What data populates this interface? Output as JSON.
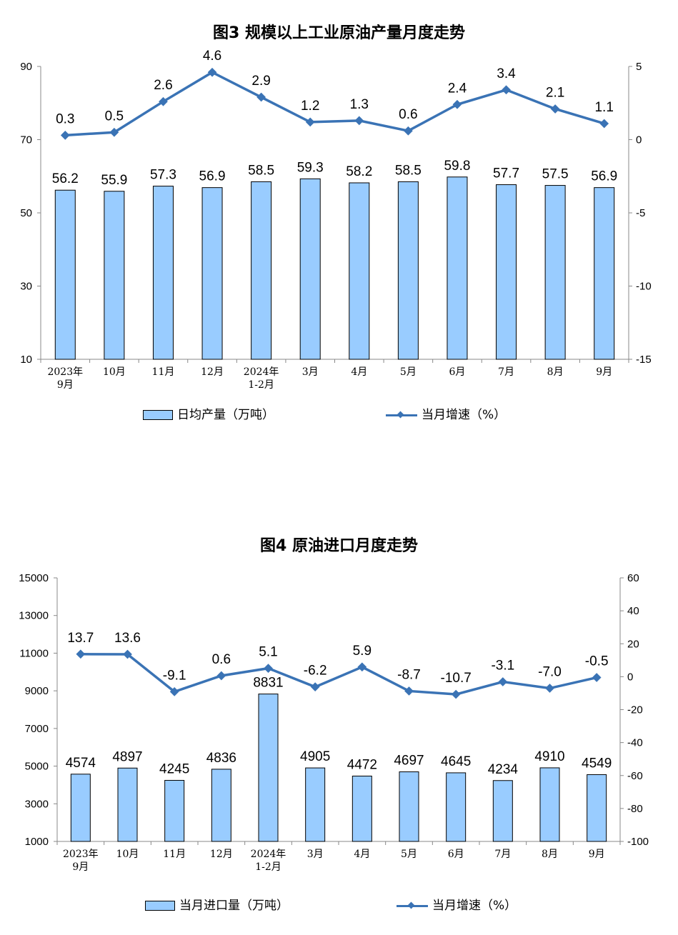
{
  "chart_data": [
    {
      "type": "bar+line",
      "title": "图3 规模以上工业原油产量月度走势",
      "categories": [
        [
          "2023年",
          "9月"
        ],
        [
          "10月"
        ],
        [
          "11月"
        ],
        [
          "12月"
        ],
        [
          "2024年",
          "1-2月"
        ],
        [
          "3月"
        ],
        [
          "4月"
        ],
        [
          "5月"
        ],
        [
          "6月"
        ],
        [
          "7月"
        ],
        [
          "8月"
        ],
        [
          "9月"
        ]
      ],
      "left_axis": {
        "ylim": [
          10,
          90
        ],
        "ticks": [
          10,
          30,
          50,
          70,
          90
        ]
      },
      "right_axis": {
        "ylim": [
          -15,
          5
        ],
        "ticks": [
          -15,
          -10,
          -5,
          0,
          5
        ]
      },
      "series": [
        {
          "name": "日均产量（万吨）",
          "kind": "bar",
          "axis": "left",
          "values": [
            56.2,
            55.9,
            57.3,
            56.9,
            58.5,
            59.3,
            58.2,
            58.5,
            59.8,
            57.7,
            57.5,
            56.9
          ],
          "labels": [
            "56.2",
            "55.9",
            "57.3",
            "56.9",
            "58.5",
            "59.3",
            "58.2",
            "58.5",
            "59.8",
            "57.7",
            "57.5",
            "56.9"
          ]
        },
        {
          "name": "当月增速（%）",
          "kind": "line",
          "axis": "right",
          "values": [
            0.3,
            0.5,
            2.6,
            4.6,
            2.9,
            1.2,
            1.3,
            0.6,
            2.4,
            3.4,
            2.1,
            1.1
          ],
          "labels": [
            "0.3",
            "0.5",
            "2.6",
            "4.6",
            "2.9",
            "1.2",
            "1.3",
            "0.6",
            "2.4",
            "3.4",
            "2.1",
            "1.1"
          ]
        }
      ],
      "legend_position": "bottom",
      "grid": false,
      "colors": {
        "bar": "#99ccff",
        "bar_border": "#000000",
        "line": "#3a73b5"
      }
    },
    {
      "type": "bar+line",
      "title": "图4 原油进口月度走势",
      "categories": [
        [
          "2023年",
          "9月"
        ],
        [
          "10月"
        ],
        [
          "11月"
        ],
        [
          "12月"
        ],
        [
          "2024年",
          "1-2月"
        ],
        [
          "3月"
        ],
        [
          "4月"
        ],
        [
          "5月"
        ],
        [
          "6月"
        ],
        [
          "7月"
        ],
        [
          "8月"
        ],
        [
          "9月"
        ]
      ],
      "left_axis": {
        "ylim": [
          1000,
          15000
        ],
        "ticks": [
          1000,
          3000,
          5000,
          7000,
          9000,
          11000,
          13000,
          15000
        ]
      },
      "right_axis": {
        "ylim": [
          -100,
          60
        ],
        "ticks": [
          -100,
          -80,
          -60,
          -40,
          -20,
          0,
          20,
          40,
          60
        ]
      },
      "series": [
        {
          "name": "当月进口量（万吨）",
          "kind": "bar",
          "axis": "left",
          "values": [
            4574,
            4897,
            4245,
            4836,
            8831,
            4905,
            4472,
            4697,
            4645,
            4234,
            4910,
            4549
          ],
          "labels": [
            "4574",
            "4897",
            "4245",
            "4836",
            "8831",
            "4905",
            "4472",
            "4697",
            "4645",
            "4234",
            "4910",
            "4549"
          ]
        },
        {
          "name": "当月增速（%）",
          "kind": "line",
          "axis": "right",
          "values": [
            13.7,
            13.6,
            -9.1,
            0.6,
            5.1,
            -6.2,
            5.9,
            -8.7,
            -10.7,
            -3.1,
            -7.0,
            -0.5
          ],
          "labels": [
            "13.7",
            "13.6",
            "-9.1",
            "0.6",
            "5.1",
            "-6.2",
            "5.9",
            "-8.7",
            "-10.7",
            "-3.1",
            "-7.0",
            "-0.5"
          ]
        }
      ],
      "legend_position": "bottom",
      "grid": false,
      "colors": {
        "bar": "#99ccff",
        "bar_border": "#000000",
        "line": "#3a73b5"
      }
    }
  ]
}
